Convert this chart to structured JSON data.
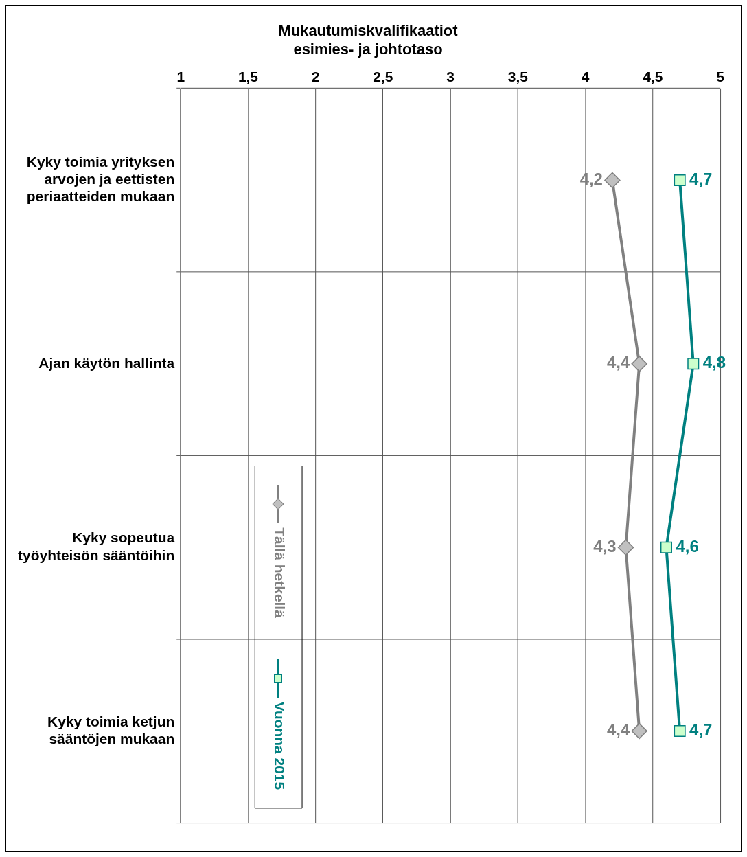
{
  "chart_data": {
    "type": "line",
    "orientation": "horizontal",
    "title": "Mukautumiskvalifikaatiot\nesimies- ja johtotaso",
    "categories": [
      "Kyky toimia yrityksen arvojen ja eettisten periaatteiden mukaan",
      "Ajan käytön hallinta",
      "Kyky sopeutua työyhteisön sääntöihin",
      "Kyky toimia ketjun sääntöjen mukaan"
    ],
    "series": [
      {
        "name": "Tällä hetkellä",
        "color": "#808080",
        "marker": "diamond",
        "values": [
          4.2,
          4.4,
          4.3,
          4.4
        ],
        "value_labels": [
          "4,2",
          "4,4",
          "4,3",
          "4,4"
        ]
      },
      {
        "name": "Vuonna 2015",
        "color": "#008080",
        "marker": "square",
        "values": [
          4.7,
          4.8,
          4.6,
          4.7
        ],
        "value_labels": [
          "4,7",
          "4,8",
          "4,6",
          "4,7"
        ]
      }
    ],
    "xlim": [
      1,
      5
    ],
    "xticks": [
      1,
      {
        "value": 1.5,
        "label": "1,5"
      },
      2,
      {
        "value": 2.5,
        "label": "2,5"
      },
      3,
      {
        "value": 3.5,
        "label": "3,5"
      },
      4,
      {
        "value": 4.5,
        "label": "4,5"
      },
      5
    ],
    "grid": true,
    "legend": "bottom left",
    "line_style": "solid"
  }
}
